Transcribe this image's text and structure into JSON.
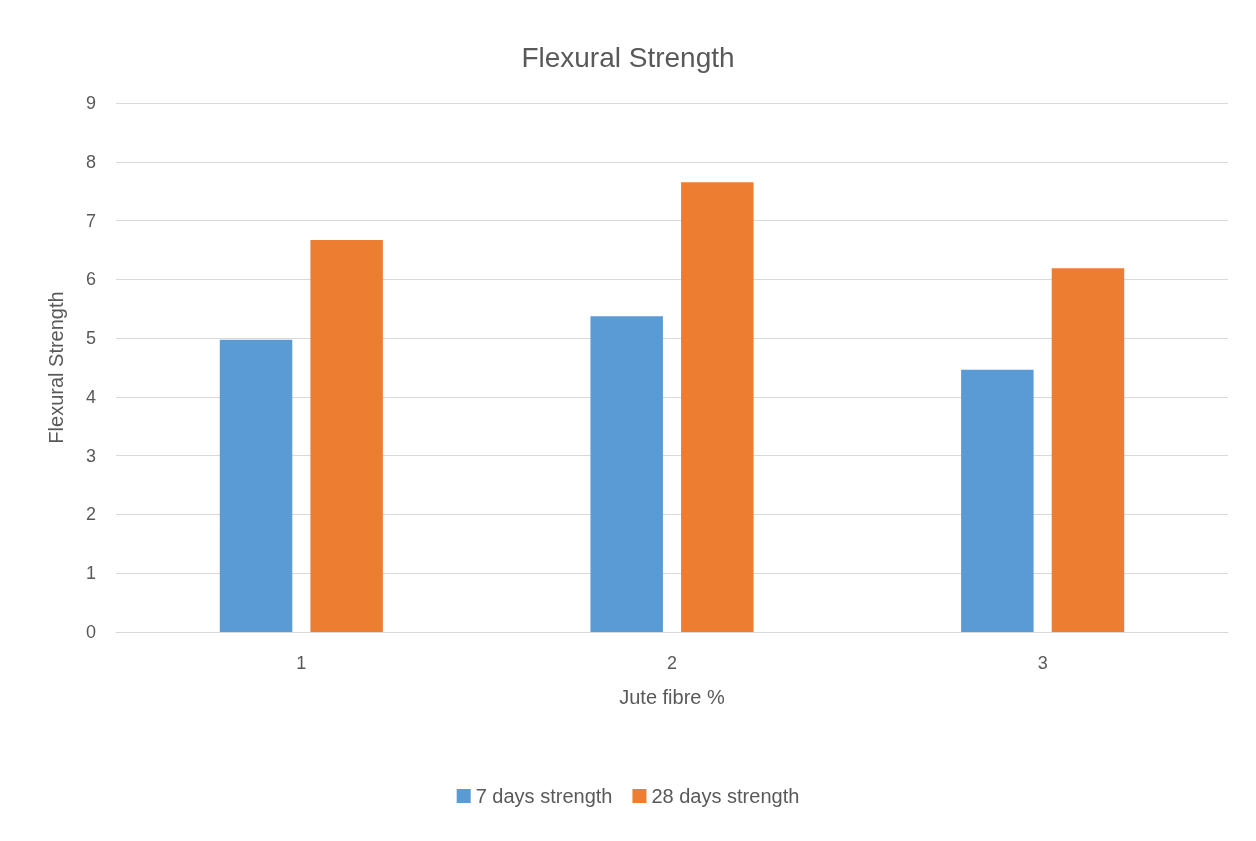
{
  "chart_data": {
    "type": "bar",
    "title": "Flexural Strength",
    "xlabel": "Jute fibre %",
    "ylabel": "Flexural Strength",
    "categories": [
      "1",
      "2",
      "3"
    ],
    "series": [
      {
        "name": "7 days strength",
        "color": "#5b9bd5",
        "values": [
          4.97,
          5.37,
          4.46
        ]
      },
      {
        "name": "28 days strength",
        "color": "#ed7d31",
        "values": [
          6.67,
          7.65,
          6.19
        ]
      }
    ],
    "ylim": [
      0,
      9
    ],
    "yticks": [
      0,
      1,
      2,
      3,
      4,
      5,
      6,
      7,
      8,
      9
    ],
    "grid": "y",
    "legend": "bottom"
  }
}
